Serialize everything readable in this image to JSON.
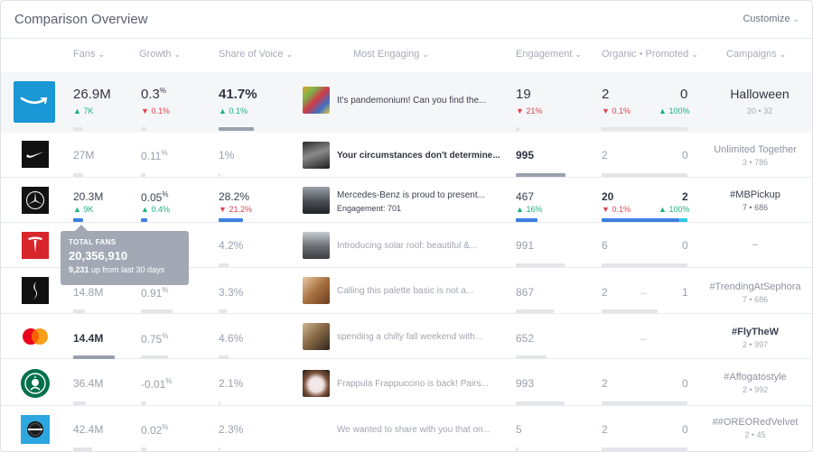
{
  "title": "Comparison Overview",
  "customize": "Customize",
  "headers": {
    "fans": "Fans",
    "growth": "Growth",
    "share": "Share of Voice",
    "engaging": "Most Engaging",
    "engagement": "Engagement",
    "organic": "Organic",
    "promoted": "Promoted",
    "campaigns": "Campaigns"
  },
  "brands": {
    "amazon": {
      "fans": "26.9M",
      "fans_delta": "7K",
      "growth": "0.3",
      "growth_delta": "0.1%",
      "share": "41.7%",
      "share_delta": "0.1%",
      "post": "It's pandemonium! Can you find the...",
      "engagement": "19",
      "engagement_delta": "21%",
      "organic": "2",
      "organic_delta": "0.1%",
      "promoted": "0",
      "promoted_delta": "100%",
      "campaign": "Halloween",
      "campaign_meta": "20 • 32"
    },
    "nike": {
      "fans": "27M",
      "growth": "0.11",
      "share": "1%",
      "post": "Your circumstances don't determine...",
      "engagement": "995",
      "organic": "2",
      "promoted": "0",
      "campaign": "Unlimited Together",
      "campaign_meta": "3 • 786"
    },
    "mercedes": {
      "fans": "20.3M",
      "fans_delta": "9K",
      "growth": "0.05",
      "growth_delta": "0.4%",
      "share": "28.2%",
      "share_delta": "21.2%",
      "post": "Mercedes-Benz is proud to present...",
      "post_sub": "Engagement: 701",
      "engagement": "467",
      "engagement_delta": "16%",
      "organic": "20",
      "organic_delta": "0.1%",
      "promoted": "2",
      "promoted_delta": "100%",
      "campaign": "#MBPickup",
      "campaign_meta": "7 • 686"
    },
    "tesla": {
      "share": "4.2%",
      "post": "Introducing solar roof: beautiful &...",
      "engagement": "991",
      "organic": "6",
      "promoted": "0",
      "campaign": "–"
    },
    "sephora": {
      "fans": "14.8M",
      "growth": "0.91",
      "share": "3.3%",
      "post": "Calling this palette basic is not a...",
      "engagement": "867",
      "organic": "2",
      "organic_sep": "–",
      "promoted": "1",
      "campaign": "#TrendingAtSephora",
      "campaign_meta": "7 • 686"
    },
    "mastercard": {
      "fans": "14.4M",
      "growth": "0.75",
      "share": "4.6%",
      "post": "spending a chilly fall weekend with...",
      "engagement": "652",
      "organic_sep": "–",
      "campaign": "#FlyTheW",
      "campaign_meta": "2 • 997"
    },
    "starbucks": {
      "fans": "36.4M",
      "growth": "-0.01",
      "share": "2.1%",
      "post": "Frappula Frappuccino is back! Pairs...",
      "engagement": "993",
      "organic": "2",
      "promoted": "0",
      "campaign": "#Affogatostyle",
      "campaign_meta": "2 • 992"
    },
    "oreo": {
      "fans": "42.4M",
      "growth": "0.02",
      "share": "2.3%",
      "post": "We wanted to share with you that on...",
      "engagement": "5",
      "organic": "2",
      "promoted": "0",
      "campaign": "##OREORedVelvet",
      "campaign_meta": "2 • 45"
    }
  },
  "tooltip": {
    "label": "TOTAL FANS",
    "value": "20,356,910",
    "detail_number": "9,231",
    "detail_text": " up from last 30 days"
  }
}
